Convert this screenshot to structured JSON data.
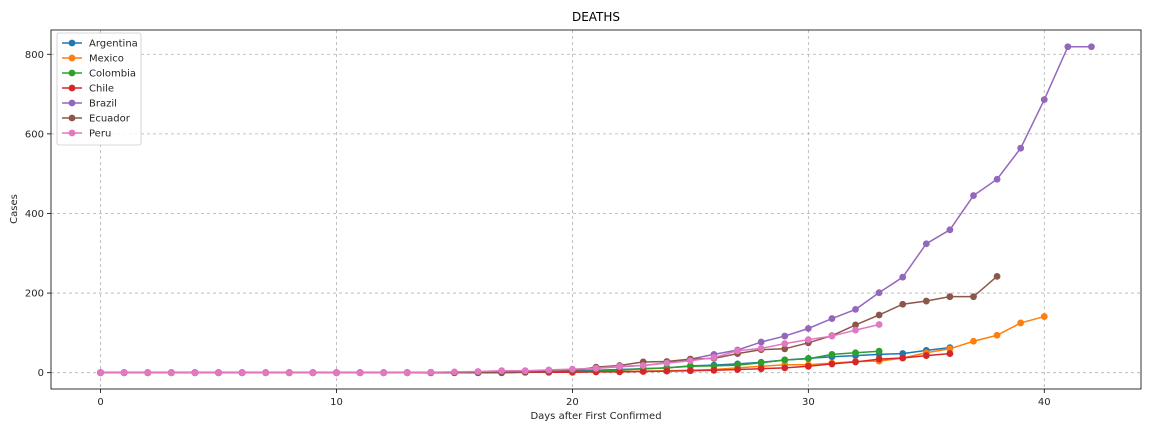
{
  "chart_data": {
    "type": "line",
    "title": "DEATHS",
    "xlabel": "Days after First Confirmed",
    "ylabel": "Cases",
    "xlim": [
      -2.1,
      44.1
    ],
    "ylim": [
      -41,
      861
    ],
    "x_ticks": [
      0,
      10,
      20,
      30,
      40
    ],
    "y_ticks": [
      0,
      200,
      400,
      600,
      800
    ],
    "grid": true,
    "legend_position": "top-left",
    "series": [
      {
        "name": "Argentina",
        "color": "#1f77b4",
        "x": [
          0,
          1,
          2,
          3,
          4,
          5,
          6,
          7,
          8,
          9,
          10,
          11,
          12,
          13,
          14,
          15,
          16,
          17,
          18,
          19,
          20,
          21,
          22,
          23,
          24,
          25,
          26,
          27,
          28,
          29,
          30,
          31,
          32,
          33,
          34,
          35,
          36
        ],
        "values": [
          0,
          0,
          0,
          0,
          0,
          0,
          0,
          0,
          0,
          0,
          0,
          0,
          0,
          0,
          1,
          1,
          2,
          2,
          3,
          3,
          4,
          6,
          8,
          10,
          12,
          17,
          19,
          22,
          26,
          32,
          36,
          40,
          43,
          46,
          48,
          56,
          63
        ]
      },
      {
        "name": "Mexico",
        "color": "#ff7f0e",
        "x": [
          0,
          1,
          2,
          3,
          4,
          5,
          6,
          7,
          8,
          9,
          10,
          11,
          12,
          13,
          14,
          15,
          16,
          17,
          18,
          19,
          20,
          21,
          22,
          23,
          24,
          25,
          26,
          27,
          28,
          29,
          30,
          31,
          32,
          33,
          34,
          35,
          36,
          37,
          38,
          39,
          40
        ],
        "values": [
          0,
          0,
          0,
          0,
          0,
          0,
          0,
          0,
          0,
          0,
          0,
          0,
          0,
          0,
          0,
          0,
          0,
          0,
          1,
          1,
          2,
          2,
          3,
          4,
          5,
          6,
          8,
          12,
          16,
          20,
          20,
          24,
          28,
          29,
          37,
          50,
          60,
          79,
          94,
          125,
          141
        ]
      },
      {
        "name": "Colombia",
        "color": "#2ca02c",
        "x": [
          0,
          1,
          2,
          3,
          4,
          5,
          6,
          7,
          8,
          9,
          10,
          11,
          12,
          13,
          14,
          15,
          16,
          17,
          18,
          19,
          20,
          21,
          22,
          23,
          24,
          25,
          26,
          27,
          28,
          29,
          30,
          31,
          32,
          33
        ],
        "values": [
          0,
          0,
          0,
          0,
          0,
          0,
          0,
          0,
          0,
          0,
          0,
          0,
          0,
          0,
          0,
          0,
          0,
          1,
          2,
          3,
          3,
          4,
          6,
          10,
          12,
          16,
          17,
          19,
          25,
          32,
          35,
          46,
          50,
          54
        ]
      },
      {
        "name": "Chile",
        "color": "#d62728",
        "x": [
          0,
          1,
          2,
          3,
          4,
          5,
          6,
          7,
          8,
          9,
          10,
          11,
          12,
          13,
          14,
          15,
          16,
          17,
          18,
          19,
          20,
          21,
          22,
          23,
          24,
          25,
          26,
          27,
          28,
          29,
          30,
          31,
          32,
          33,
          34,
          35,
          36
        ],
        "values": [
          0,
          0,
          0,
          0,
          0,
          0,
          0,
          0,
          0,
          0,
          0,
          0,
          0,
          0,
          0,
          0,
          0,
          0,
          1,
          1,
          1,
          2,
          2,
          3,
          4,
          5,
          6,
          8,
          10,
          12,
          16,
          22,
          27,
          34,
          37,
          43,
          48
        ]
      },
      {
        "name": "Brazil",
        "color": "#9467bd",
        "x": [
          0,
          1,
          2,
          3,
          4,
          5,
          6,
          7,
          8,
          9,
          10,
          11,
          12,
          13,
          14,
          15,
          16,
          17,
          18,
          19,
          20,
          21,
          22,
          23,
          24,
          25,
          26,
          27,
          28,
          29,
          30,
          31,
          32,
          33,
          34,
          35,
          36,
          37,
          38,
          39,
          40,
          41,
          42
        ],
        "values": [
          0,
          0,
          0,
          0,
          0,
          0,
          0,
          0,
          0,
          0,
          0,
          0,
          0,
          0,
          0,
          0,
          1,
          1,
          2,
          3,
          6,
          11,
          15,
          18,
          25,
          34,
          46,
          57,
          77,
          92,
          111,
          136,
          159,
          201,
          240,
          324,
          359,
          445,
          486,
          564,
          686,
          819,
          819
        ]
      },
      {
        "name": "Ecuador",
        "color": "#8c564b",
        "x": [
          0,
          1,
          2,
          3,
          4,
          5,
          6,
          7,
          8,
          9,
          10,
          11,
          12,
          13,
          14,
          15,
          16,
          17,
          18,
          19,
          20,
          21,
          22,
          23,
          24,
          25,
          26,
          27,
          28,
          29,
          30,
          31,
          32,
          33,
          34,
          35,
          36,
          37,
          38
        ],
        "values": [
          0,
          0,
          0,
          0,
          0,
          0,
          0,
          0,
          0,
          0,
          0,
          0,
          0,
          0,
          0,
          0,
          0,
          0,
          2,
          3,
          5,
          14,
          18,
          27,
          28,
          34,
          36,
          48,
          58,
          60,
          75,
          93,
          120,
          145,
          172,
          180,
          191,
          191,
          242
        ]
      },
      {
        "name": "Peru",
        "color": "#e377c2",
        "x": [
          0,
          1,
          2,
          3,
          4,
          5,
          6,
          7,
          8,
          9,
          10,
          11,
          12,
          13,
          14,
          15,
          16,
          17,
          18,
          19,
          20,
          21,
          22,
          23,
          24,
          25,
          26,
          27,
          28,
          29,
          30,
          31,
          32,
          33
        ],
        "values": [
          0,
          0,
          0,
          0,
          0,
          0,
          0,
          0,
          0,
          0,
          0,
          0,
          0,
          0,
          1,
          2,
          3,
          5,
          5,
          7,
          9,
          11,
          16,
          18,
          24,
          30,
          38,
          55,
          61,
          73,
          83,
          92,
          107,
          121
        ]
      }
    ]
  }
}
